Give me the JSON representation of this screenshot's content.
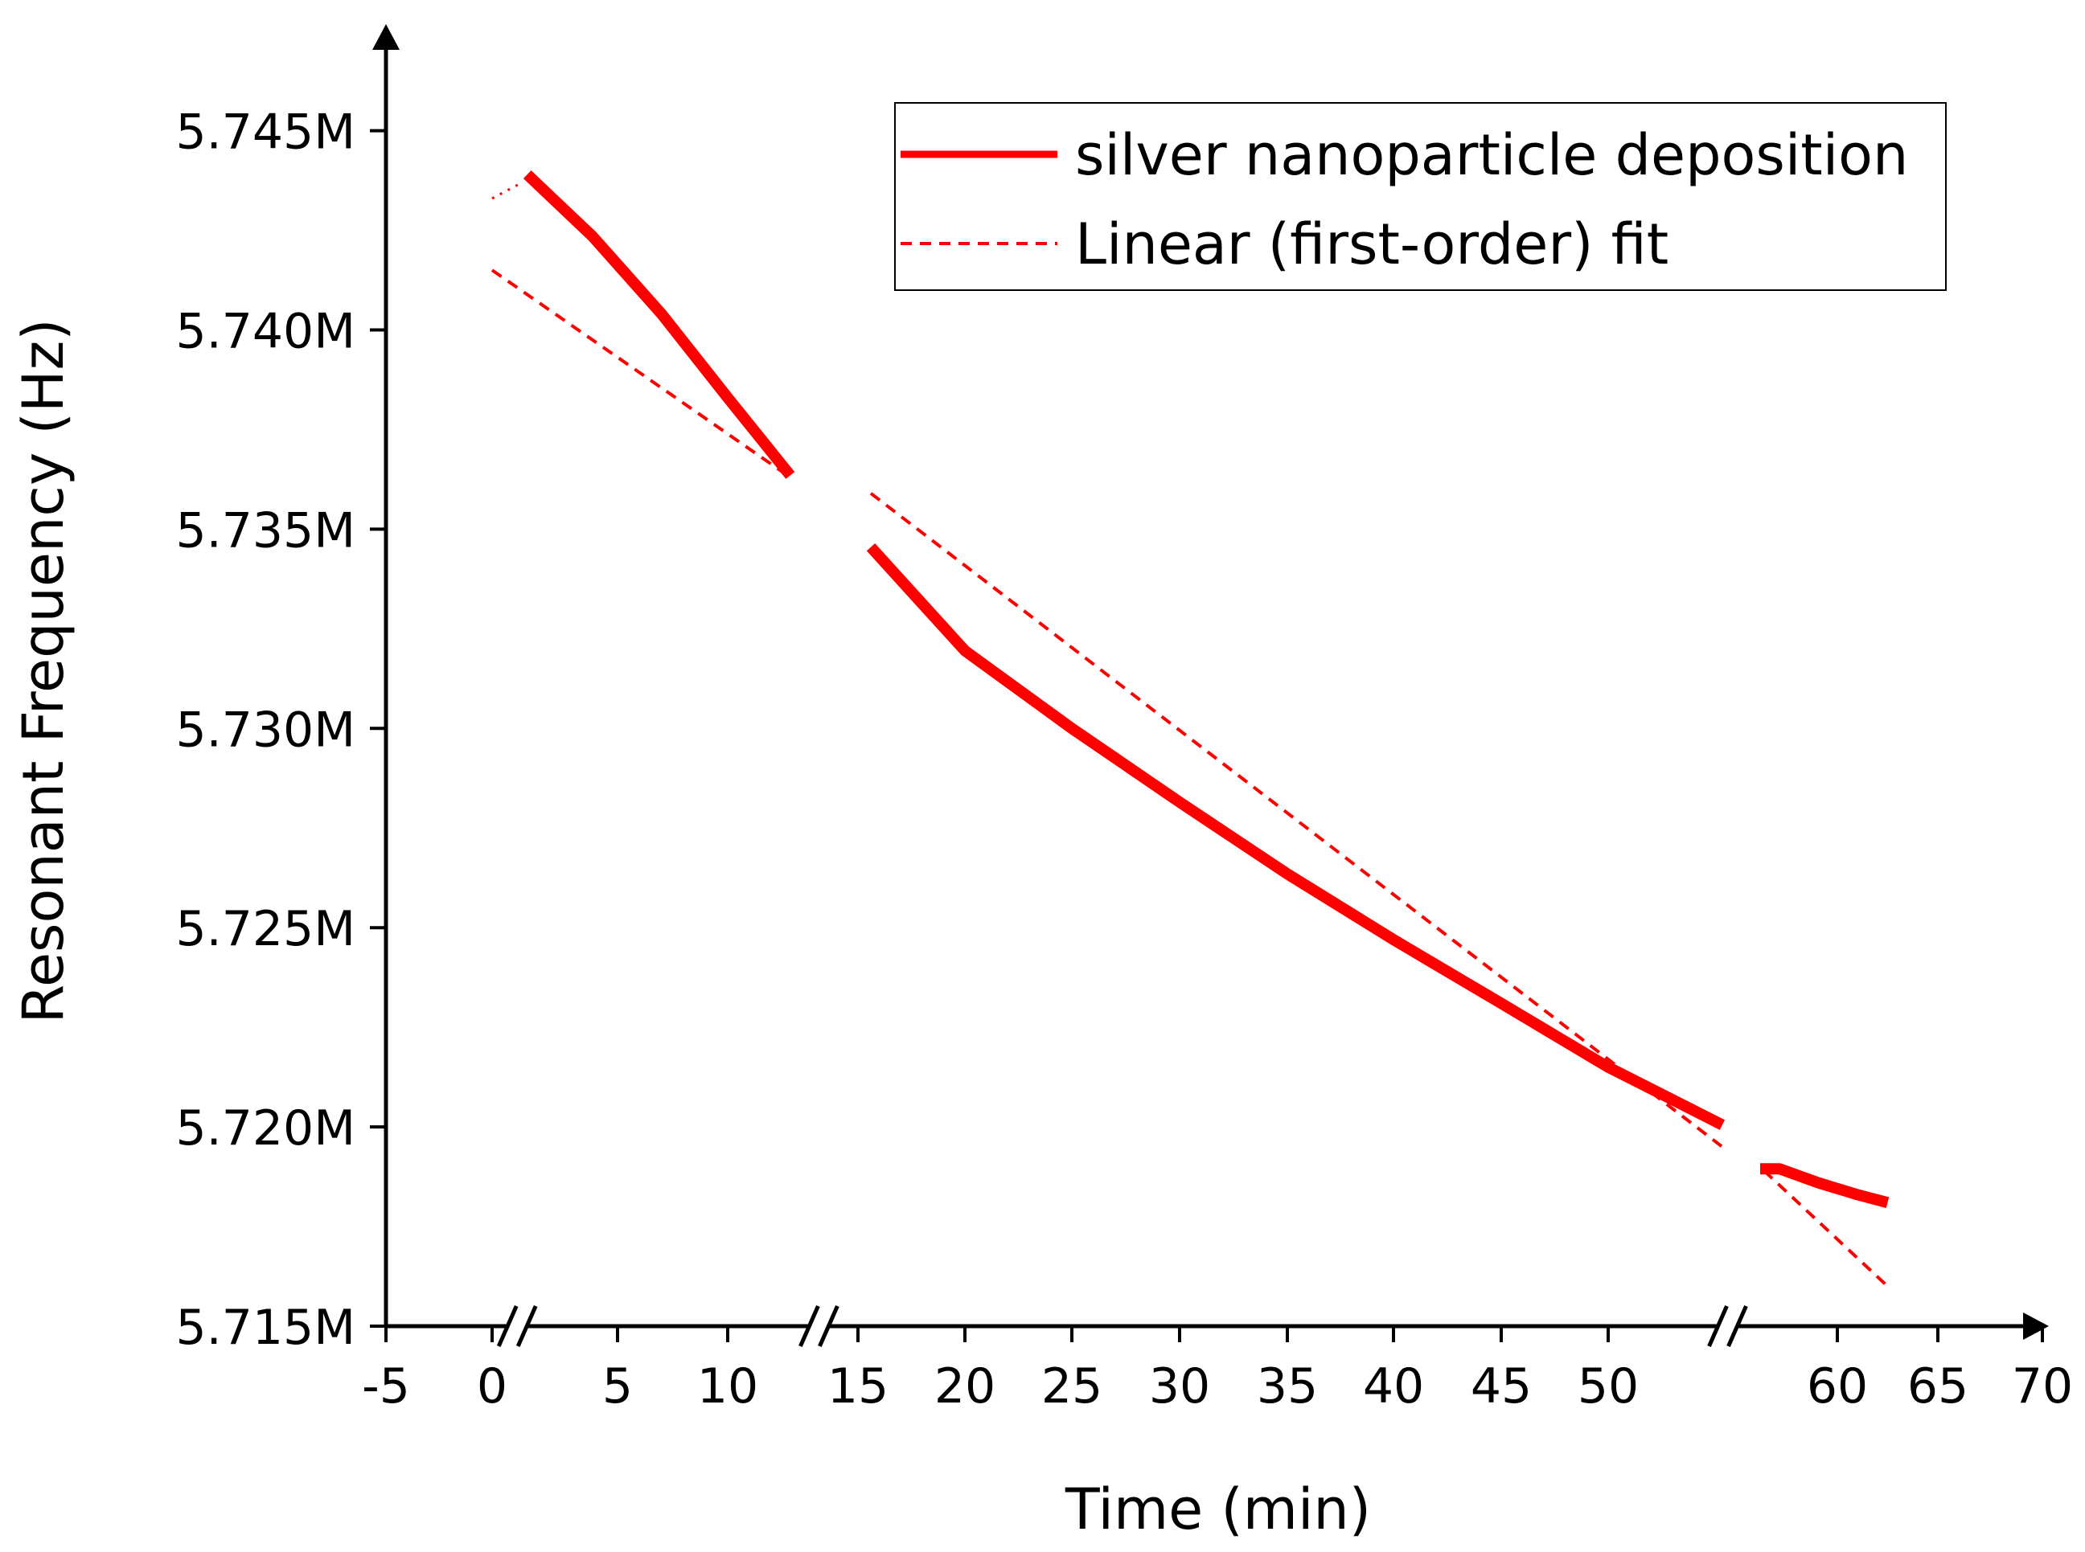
{
  "chart_data": {
    "type": "line",
    "title": "",
    "xlabel": "Time (min)",
    "ylabel": "Resonant Frequency (Hz)",
    "x_axis_breaks": [
      1,
      13.5,
      54.5
    ],
    "xticks": [
      "-5",
      "0",
      "5",
      "10",
      "15",
      "20",
      "25",
      "30",
      "35",
      "40",
      "45",
      "50",
      "60",
      "65",
      "70"
    ],
    "yticks": [
      "5.715M",
      "5.720M",
      "5.725M",
      "5.730M",
      "5.735M",
      "5.740M",
      "5.745M"
    ],
    "legend_position": "top-right",
    "colors": {
      "series": "#ff0000",
      "axis": "#000000"
    },
    "series": [
      {
        "name": "silver nanoparticle deposition",
        "style": "solid",
        "segments": [
          {
            "x": [
              1.4,
              4,
              7,
              10,
              12.4
            ],
            "y": [
              5743900,
              5742350,
              5740400,
              5738300,
              5736350
            ]
          },
          {
            "x": [
              15.6,
              20,
              25,
              30,
              35,
              40,
              45,
              50,
              54.3
            ],
            "y": [
              5734550,
              5731950,
              5730000,
              5728150,
              5726350,
              5724700,
              5723100,
              5721500,
              5720050
            ]
          },
          {
            "x": [
              56,
              57,
              59,
              61,
              62.5
            ],
            "y": [
              5718950,
              5718950,
              5718600,
              5718300,
              5718100
            ]
          }
        ]
      },
      {
        "name": "Linear (first-order) fit",
        "style": "dashed",
        "segments": [
          {
            "x": [
              0,
              12.4
            ],
            "y": [
              5741500,
              5736300
            ]
          },
          {
            "x": [
              15.6,
              54.3
            ],
            "y": [
              5735900,
              5719500
            ]
          },
          {
            "x": [
              56.2,
              62.5
            ],
            "y": [
              5718900,
              5716000
            ]
          }
        ]
      },
      {
        "name": "",
        "style": "dotted",
        "segments": [
          {
            "x": [
              0,
              1.2
            ],
            "y": [
              5743300,
              5743700
            ]
          }
        ]
      }
    ]
  }
}
